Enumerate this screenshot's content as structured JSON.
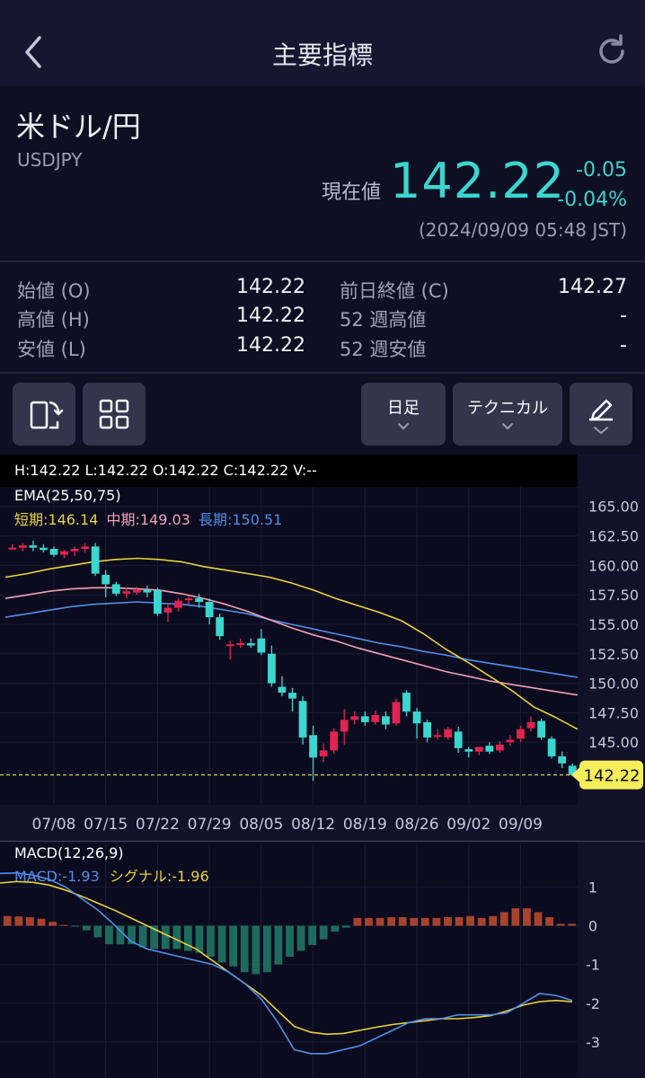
{
  "header": {
    "title": "主要指標"
  },
  "instrument": {
    "name": "米ドル/円",
    "code": "USDJPY",
    "current_label": "現在値",
    "current_price": "142.22",
    "change_abs": "-0.05",
    "change_pct": "-0.04%",
    "timestamp": "(2024/09/09 05:48 JST)"
  },
  "stats": {
    "open_label": "始値 (O)",
    "open_value": "142.22",
    "high_label": "高値 (H)",
    "high_value": "142.22",
    "low_label": "安値 (L)",
    "low_value": "142.22",
    "prev_close_label": "前日終値 (C)",
    "prev_close_value": "142.27",
    "wk52_high_label": "52 週高値",
    "wk52_high_value": "-",
    "wk52_low_label": "52 週安値",
    "wk52_low_value": "-"
  },
  "toolbar": {
    "rotate_icon": "rotate-screen-icon",
    "grid_icon": "layout-grid-icon",
    "period_label": "日足",
    "technical_label": "テクニカル",
    "draw_icon": "pencil-icon"
  },
  "colors": {
    "up": "#e0244f",
    "down": "#3bd6cf",
    "ema_short": "#e8d23a",
    "ema_mid": "#f2a0b4",
    "ema_long": "#4f8fe8",
    "macd_line": "#4f8fe8",
    "signal_line": "#e8d23a",
    "hist_pos": "#a8432c",
    "hist_neg": "#1d6b5c"
  },
  "chart_data": {
    "type": "candlestick",
    "ohlc_header": "H:142.22  L:142.22  O:142.22  C:142.22  V:--",
    "ema": {
      "title": "EMA(25,50,75)",
      "short_text": "短期:146.14",
      "mid_text": "中期:149.03",
      "long_text": "長期:150.51"
    },
    "price_axis": {
      "ticks": [
        "165.00",
        "162.50",
        "160.00",
        "157.50",
        "155.00",
        "152.50",
        "150.00",
        "147.50",
        "145.00"
      ],
      "range": [
        140.9,
        166.2
      ]
    },
    "last_price_label": "142.22",
    "last_price": 142.22,
    "x_ticks": [
      "07/08",
      "07/15",
      "07/22",
      "07/29",
      "08/05",
      "08/12",
      "08/19",
      "08/26",
      "09/02",
      "09/09"
    ],
    "candles": [
      [
        161.5,
        161.8,
        161.3,
        161.5
      ],
      [
        161.5,
        161.9,
        161.2,
        161.7
      ],
      [
        161.7,
        162.1,
        161.2,
        161.5
      ],
      [
        161.5,
        161.8,
        161.1,
        161.3
      ],
      [
        161.4,
        161.6,
        160.7,
        160.9
      ],
      [
        160.9,
        161.3,
        160.6,
        161.2
      ],
      [
        161.2,
        161.6,
        160.8,
        161.4
      ],
      [
        161.4,
        161.9,
        161.1,
        161.6
      ],
      [
        161.6,
        161.9,
        159.1,
        159.3
      ],
      [
        159.2,
        159.6,
        157.3,
        158.4
      ],
      [
        158.4,
        158.6,
        157.4,
        157.6
      ],
      [
        157.6,
        158.1,
        157.2,
        157.8
      ],
      [
        157.7,
        158.2,
        157.5,
        157.9
      ],
      [
        157.9,
        158.3,
        157.3,
        157.7
      ],
      [
        157.9,
        158.1,
        155.7,
        155.9
      ],
      [
        156.0,
        156.8,
        155.2,
        156.4
      ],
      [
        156.4,
        157.2,
        156.1,
        157.0
      ],
      [
        157.1,
        157.4,
        156.7,
        157.2
      ],
      [
        157.2,
        157.6,
        156.4,
        156.9
      ],
      [
        156.9,
        157.2,
        155.0,
        155.6
      ],
      [
        155.6,
        155.9,
        153.7,
        154.0
      ],
      [
        153.2,
        153.6,
        152.0,
        153.3
      ],
      [
        153.3,
        153.8,
        153.0,
        153.4
      ],
      [
        153.4,
        153.8,
        153.0,
        153.2
      ],
      [
        153.8,
        154.6,
        152.4,
        152.6
      ],
      [
        152.5,
        153.2,
        149.7,
        150.0
      ],
      [
        149.7,
        150.6,
        148.9,
        149.2
      ],
      [
        149.2,
        149.6,
        147.6,
        148.7
      ],
      [
        148.5,
        148.9,
        144.8,
        145.4
      ],
      [
        145.6,
        146.4,
        141.7,
        143.7
      ],
      [
        143.8,
        144.9,
        143.3,
        144.3
      ],
      [
        144.3,
        146.2,
        144.0,
        145.9
      ],
      [
        145.9,
        147.8,
        144.8,
        146.9
      ],
      [
        146.9,
        147.6,
        146.5,
        147.2
      ],
      [
        147.2,
        147.6,
        146.4,
        146.7
      ],
      [
        146.7,
        147.7,
        146.5,
        147.3
      ],
      [
        147.2,
        147.6,
        146.1,
        146.5
      ],
      [
        146.6,
        148.7,
        146.4,
        148.4
      ],
      [
        149.2,
        149.4,
        147.2,
        147.6
      ],
      [
        147.6,
        147.9,
        145.3,
        146.6
      ],
      [
        146.7,
        146.9,
        145.0,
        145.4
      ],
      [
        145.6,
        146.1,
        145.2,
        145.6
      ],
      [
        145.4,
        146.3,
        145.2,
        146.1
      ],
      [
        145.9,
        146.3,
        144.1,
        144.5
      ],
      [
        144.4,
        144.6,
        143.7,
        144.2
      ],
      [
        144.2,
        144.6,
        143.9,
        144.6
      ],
      [
        144.7,
        145.0,
        144.0,
        144.2
      ],
      [
        144.3,
        145.1,
        144.1,
        144.8
      ],
      [
        145.0,
        145.6,
        144.7,
        145.2
      ],
      [
        145.3,
        146.4,
        145.0,
        146.1
      ],
      [
        146.2,
        147.2,
        145.9,
        146.7
      ],
      [
        146.8,
        147.0,
        145.2,
        145.4
      ],
      [
        145.3,
        145.5,
        143.6,
        143.8
      ],
      [
        143.8,
        144.2,
        142.8,
        143.2
      ],
      [
        143.0,
        143.2,
        142.1,
        142.22
      ]
    ],
    "ema_short": [
      159.0,
      159.3,
      159.7,
      160.0,
      160.3,
      160.5,
      160.6,
      160.5,
      160.3,
      159.9,
      159.6,
      159.3,
      159.0,
      158.5,
      157.9,
      157.2,
      156.6,
      156.0,
      155.3,
      154.2,
      152.9,
      151.8,
      150.6,
      149.4,
      148.0,
      147.1,
      146.1
    ],
    "ema_mid": [
      157.2,
      157.5,
      157.8,
      158.0,
      158.1,
      158.1,
      158.0,
      157.9,
      157.6,
      157.2,
      156.7,
      156.1,
      155.4,
      154.7,
      154.1,
      153.6,
      153.0,
      152.5,
      152.0,
      151.5,
      151.0,
      150.6,
      150.2,
      149.9,
      149.6,
      149.3,
      149.0
    ],
    "ema_long": [
      155.6,
      155.9,
      156.2,
      156.5,
      156.7,
      156.8,
      156.9,
      156.8,
      156.7,
      156.5,
      156.2,
      155.9,
      155.4,
      155.0,
      154.6,
      154.2,
      153.8,
      153.4,
      153.1,
      152.7,
      152.4,
      152.0,
      151.7,
      151.4,
      151.1,
      150.8,
      150.5
    ],
    "macd": {
      "title": "MACD(12,26,9)",
      "macd_text": "MACD:-1.93",
      "signal_text": "シグナル:-1.96",
      "axis_ticks": [
        "1",
        "0",
        "-1",
        "-2",
        "-3"
      ],
      "range": [
        -3.35,
        1.75
      ],
      "macd_line": [
        1.35,
        1.36,
        1.31,
        1.2,
        1.0,
        0.7,
        0.4,
        0.02,
        -0.4,
        -0.6,
        -0.7,
        -0.8,
        -0.9,
        -1.0,
        -1.2,
        -1.5,
        -1.9,
        -2.5,
        -3.2,
        -3.3,
        -3.3,
        -3.2,
        -3.1,
        -2.9,
        -2.7,
        -2.5,
        -2.4,
        -2.4,
        -2.3,
        -2.3,
        -2.3,
        -2.25,
        -2.0,
        -1.75,
        -1.8,
        -1.93
      ],
      "signal_line": [
        1.1,
        1.14,
        1.12,
        1.05,
        0.92,
        0.76,
        0.58,
        0.4,
        0.2,
        0.0,
        -0.2,
        -0.4,
        -0.6,
        -0.9,
        -1.2,
        -1.5,
        -1.8,
        -2.2,
        -2.6,
        -2.75,
        -2.8,
        -2.78,
        -2.7,
        -2.62,
        -2.55,
        -2.5,
        -2.45,
        -2.4,
        -2.4,
        -2.37,
        -2.32,
        -2.2,
        -2.05,
        -1.96,
        -1.93,
        -1.96
      ],
      "histogram": [
        0.25,
        0.24,
        0.22,
        0.18,
        0.1,
        0.02,
        -0.02,
        -0.12,
        -0.3,
        -0.48,
        -0.48,
        -0.48,
        -0.55,
        -0.6,
        -0.6,
        -0.6,
        -0.65,
        -0.7,
        -0.8,
        -0.95,
        -1.05,
        -1.2,
        -1.25,
        -1.2,
        -1.0,
        -0.8,
        -0.65,
        -0.5,
        -0.35,
        -0.15,
        -0.05,
        0.2,
        0.2,
        0.2,
        0.22,
        0.22,
        0.2,
        0.2,
        0.2,
        0.22,
        0.22,
        0.25,
        0.2,
        0.25,
        0.35,
        0.45,
        0.45,
        0.35,
        0.22,
        0.05,
        0.05
      ]
    }
  }
}
